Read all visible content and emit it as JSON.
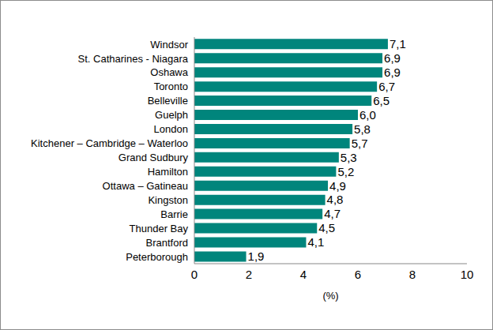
{
  "chart_data": {
    "type": "bar",
    "orientation": "horizontal",
    "x_label": "(%)",
    "categories": [
      "Windsor",
      "St. Catharines - Niagara",
      "Oshawa",
      "Toronto",
      "Belleville",
      "Guelph",
      "London",
      "Kitchener – Cambridge – Waterloo",
      "Grand Sudbury",
      "Hamilton",
      "Ottawa – Gatineau",
      "Kingston",
      "Barrie",
      "Thunder Bay",
      "Brantford",
      "Peterborough"
    ],
    "values": [
      7.1,
      6.9,
      6.9,
      6.7,
      6.5,
      6.0,
      5.8,
      5.7,
      5.3,
      5.2,
      4.9,
      4.8,
      4.7,
      4.5,
      4.1,
      1.9
    ],
    "value_labels": [
      "7,1",
      "6,9",
      "6,9",
      "6,7",
      "6,5",
      "6,0",
      "5,8",
      "5,7",
      "5,3",
      "5,2",
      "4,9",
      "4,8",
      "4,7",
      "4,5",
      "4,1",
      "1,9"
    ],
    "color": "#00857c",
    "xlim": [
      0,
      10
    ],
    "xticks": [
      0,
      2,
      4,
      6,
      8,
      10
    ],
    "grid": false,
    "data_labels": true
  }
}
